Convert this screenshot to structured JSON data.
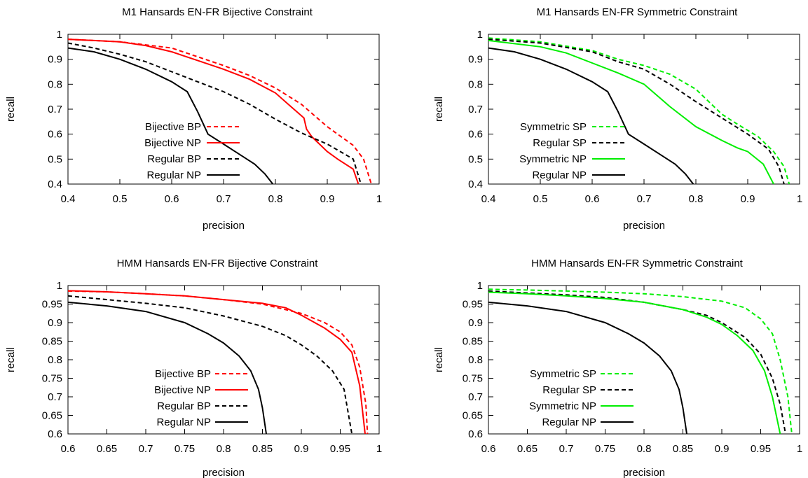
{
  "chart_data": [
    {
      "type": "line",
      "title": "M1 Hansards EN-FR Bijective Constraint",
      "xlabel": "precision",
      "ylabel": "recall",
      "xlim": [
        0.4,
        1.0
      ],
      "ylim": [
        0.4,
        1.0
      ],
      "xticks": [
        "0.4",
        "0.5",
        "0.6",
        "0.7",
        "0.8",
        "0.9",
        "1"
      ],
      "yticks": [
        "0.4",
        "0.5",
        "0.6",
        "0.7",
        "0.8",
        "0.9",
        "1"
      ],
      "legend_position": "lower-left",
      "series": [
        {
          "name": "Bijective BP",
          "color": "#ff0000",
          "dash": true,
          "x": [
            0.4,
            0.5,
            0.6,
            0.65,
            0.7,
            0.75,
            0.8,
            0.85,
            0.9,
            0.95,
            0.97,
            0.985
          ],
          "y": [
            0.98,
            0.97,
            0.945,
            0.91,
            0.875,
            0.835,
            0.785,
            0.72,
            0.63,
            0.555,
            0.5,
            0.4
          ]
        },
        {
          "name": "Bijective NP",
          "color": "#ff0000",
          "dash": false,
          "x": [
            0.4,
            0.5,
            0.55,
            0.6,
            0.65,
            0.7,
            0.75,
            0.8,
            0.83,
            0.855,
            0.86,
            0.87,
            0.88,
            0.9,
            0.92,
            0.95,
            0.96
          ],
          "y": [
            0.98,
            0.97,
            0.955,
            0.93,
            0.895,
            0.86,
            0.82,
            0.765,
            0.71,
            0.665,
            0.62,
            0.59,
            0.57,
            0.53,
            0.5,
            0.46,
            0.4
          ]
        },
        {
          "name": "Regular BP",
          "color": "#000000",
          "dash": true,
          "x": [
            0.4,
            0.45,
            0.5,
            0.55,
            0.6,
            0.65,
            0.7,
            0.75,
            0.8,
            0.85,
            0.9,
            0.95,
            0.965
          ],
          "y": [
            0.965,
            0.945,
            0.92,
            0.89,
            0.85,
            0.81,
            0.77,
            0.72,
            0.66,
            0.605,
            0.56,
            0.5,
            0.4
          ]
        },
        {
          "name": "Regular NP",
          "color": "#000000",
          "dash": false,
          "x": [
            0.4,
            0.45,
            0.5,
            0.55,
            0.6,
            0.63,
            0.65,
            0.67,
            0.7,
            0.73,
            0.76,
            0.78,
            0.795
          ],
          "y": [
            0.945,
            0.93,
            0.9,
            0.86,
            0.81,
            0.77,
            0.69,
            0.6,
            0.56,
            0.52,
            0.48,
            0.44,
            0.4
          ]
        }
      ]
    },
    {
      "type": "line",
      "title": "M1 Hansards EN-FR Symmetric Constraint",
      "xlabel": "precision",
      "ylabel": "recall",
      "xlim": [
        0.4,
        1.0
      ],
      "ylim": [
        0.4,
        1.0
      ],
      "xticks": [
        "0.4",
        "0.5",
        "0.6",
        "0.7",
        "0.8",
        "0.9",
        "1"
      ],
      "yticks": [
        "0.4",
        "0.5",
        "0.6",
        "0.7",
        "0.8",
        "0.9",
        "1"
      ],
      "legend_position": "lower-left",
      "series": [
        {
          "name": "Symmetric SP",
          "color": "#00ee00",
          "dash": true,
          "x": [
            0.4,
            0.5,
            0.6,
            0.65,
            0.7,
            0.75,
            0.8,
            0.85,
            0.88,
            0.92,
            0.95,
            0.97,
            0.98
          ],
          "y": [
            0.985,
            0.97,
            0.935,
            0.9,
            0.875,
            0.84,
            0.78,
            0.68,
            0.64,
            0.59,
            0.53,
            0.47,
            0.4
          ]
        },
        {
          "name": "Regular SP",
          "color": "#000000",
          "dash": true,
          "x": [
            0.4,
            0.5,
            0.6,
            0.65,
            0.7,
            0.75,
            0.8,
            0.85,
            0.9,
            0.94,
            0.96,
            0.97
          ],
          "y": [
            0.98,
            0.965,
            0.93,
            0.89,
            0.86,
            0.8,
            0.73,
            0.665,
            0.6,
            0.54,
            0.47,
            0.4
          ]
        },
        {
          "name": "Symmetric NP",
          "color": "#00ee00",
          "dash": false,
          "x": [
            0.4,
            0.5,
            0.55,
            0.6,
            0.65,
            0.7,
            0.75,
            0.8,
            0.85,
            0.88,
            0.9,
            0.93,
            0.95
          ],
          "y": [
            0.975,
            0.95,
            0.925,
            0.885,
            0.845,
            0.8,
            0.71,
            0.63,
            0.575,
            0.545,
            0.53,
            0.48,
            0.4
          ]
        },
        {
          "name": "Regular NP",
          "color": "#000000",
          "dash": false,
          "x": [
            0.4,
            0.45,
            0.5,
            0.55,
            0.6,
            0.63,
            0.65,
            0.67,
            0.7,
            0.73,
            0.76,
            0.78,
            0.795
          ],
          "y": [
            0.945,
            0.93,
            0.9,
            0.86,
            0.81,
            0.77,
            0.69,
            0.6,
            0.56,
            0.52,
            0.48,
            0.44,
            0.4
          ]
        }
      ]
    },
    {
      "type": "line",
      "title": "HMM Hansards EN-FR Bijective Constraint",
      "xlabel": "precision",
      "ylabel": "recall",
      "xlim": [
        0.6,
        1.0
      ],
      "ylim": [
        0.6,
        1.0
      ],
      "xticks": [
        "0.6",
        "0.65",
        "0.7",
        "0.75",
        "0.8",
        "0.85",
        "0.9",
        "0.95",
        "1"
      ],
      "yticks": [
        "0.6",
        "0.65",
        "0.7",
        "0.75",
        "0.8",
        "0.85",
        "0.9",
        "0.95",
        "1"
      ],
      "legend_position": "lower-left",
      "series": [
        {
          "name": "Bijective BP",
          "color": "#ff0000",
          "dash": true,
          "x": [
            0.6,
            0.65,
            0.7,
            0.75,
            0.8,
            0.85,
            0.9,
            0.93,
            0.95,
            0.965,
            0.975,
            0.983,
            0.985
          ],
          "y": [
            0.985,
            0.983,
            0.978,
            0.972,
            0.962,
            0.95,
            0.925,
            0.9,
            0.875,
            0.84,
            0.78,
            0.68,
            0.6
          ]
        },
        {
          "name": "Bijective NP",
          "color": "#ff0000",
          "dash": false,
          "x": [
            0.6,
            0.65,
            0.7,
            0.75,
            0.8,
            0.85,
            0.88,
            0.9,
            0.93,
            0.95,
            0.965,
            0.975,
            0.982
          ],
          "y": [
            0.986,
            0.983,
            0.978,
            0.972,
            0.962,
            0.952,
            0.94,
            0.92,
            0.885,
            0.855,
            0.82,
            0.73,
            0.6
          ]
        },
        {
          "name": "Regular BP",
          "color": "#000000",
          "dash": true,
          "x": [
            0.6,
            0.65,
            0.7,
            0.75,
            0.8,
            0.85,
            0.88,
            0.9,
            0.92,
            0.94,
            0.955,
            0.965
          ],
          "y": [
            0.972,
            0.962,
            0.952,
            0.94,
            0.918,
            0.89,
            0.865,
            0.84,
            0.81,
            0.77,
            0.72,
            0.6
          ]
        },
        {
          "name": "Regular NP",
          "color": "#000000",
          "dash": false,
          "x": [
            0.6,
            0.65,
            0.7,
            0.75,
            0.78,
            0.8,
            0.82,
            0.835,
            0.845,
            0.85,
            0.855
          ],
          "y": [
            0.955,
            0.945,
            0.93,
            0.9,
            0.87,
            0.845,
            0.81,
            0.77,
            0.72,
            0.67,
            0.6
          ]
        }
      ]
    },
    {
      "type": "line",
      "title": "HMM Hansards EN-FR Symmetric Constraint",
      "xlabel": "precision",
      "ylabel": "recall",
      "xlim": [
        0.6,
        1.0
      ],
      "ylim": [
        0.6,
        1.0
      ],
      "xticks": [
        "0.6",
        "0.65",
        "0.7",
        "0.75",
        "0.8",
        "0.85",
        "0.9",
        "0.95",
        "1"
      ],
      "yticks": [
        "0.6",
        "0.65",
        "0.7",
        "0.75",
        "0.8",
        "0.85",
        "0.9",
        "0.95",
        "1"
      ],
      "legend_position": "lower-left",
      "series": [
        {
          "name": "Symmetric SP",
          "color": "#00ee00",
          "dash": true,
          "x": [
            0.6,
            0.65,
            0.7,
            0.75,
            0.8,
            0.85,
            0.9,
            0.93,
            0.95,
            0.965,
            0.975,
            0.985,
            0.99
          ],
          "y": [
            0.99,
            0.988,
            0.985,
            0.982,
            0.978,
            0.97,
            0.958,
            0.94,
            0.91,
            0.87,
            0.8,
            0.7,
            0.6
          ]
        },
        {
          "name": "Regular SP",
          "color": "#000000",
          "dash": true,
          "x": [
            0.6,
            0.65,
            0.7,
            0.75,
            0.8,
            0.85,
            0.88,
            0.9,
            0.93,
            0.95,
            0.965,
            0.975,
            0.982
          ],
          "y": [
            0.985,
            0.98,
            0.975,
            0.968,
            0.955,
            0.935,
            0.92,
            0.9,
            0.86,
            0.815,
            0.75,
            0.68,
            0.6
          ]
        },
        {
          "name": "Symmetric NP",
          "color": "#00ee00",
          "dash": false,
          "x": [
            0.6,
            0.65,
            0.7,
            0.75,
            0.8,
            0.85,
            0.88,
            0.9,
            0.92,
            0.94,
            0.955,
            0.965,
            0.975
          ],
          "y": [
            0.982,
            0.978,
            0.972,
            0.965,
            0.955,
            0.935,
            0.915,
            0.895,
            0.865,
            0.825,
            0.77,
            0.7,
            0.6
          ]
        },
        {
          "name": "Regular NP",
          "color": "#000000",
          "dash": false,
          "x": [
            0.6,
            0.65,
            0.7,
            0.75,
            0.78,
            0.8,
            0.82,
            0.835,
            0.845,
            0.85,
            0.855
          ],
          "y": [
            0.955,
            0.945,
            0.93,
            0.9,
            0.87,
            0.845,
            0.81,
            0.77,
            0.72,
            0.67,
            0.6
          ]
        }
      ]
    }
  ]
}
